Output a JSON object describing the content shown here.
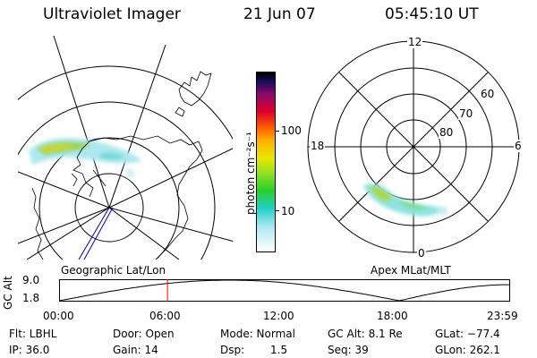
{
  "header": {
    "instrument": "Ultraviolet Imager",
    "date": "21 Jun 07",
    "time": "05:45:10 UT"
  },
  "colorbar": {
    "unit": "photon cm⁻²s⁻¹",
    "ticks": [
      "100",
      "10"
    ]
  },
  "geo_panel": {
    "label": "Geographic Lat/Lon"
  },
  "mag_panel": {
    "label": "Apex MLat/MLT",
    "mlt_labels": {
      "top": "12",
      "left": "18",
      "right": "6",
      "bottom": "0"
    },
    "lat_labels": [
      "60",
      "70",
      "80"
    ]
  },
  "altitude_plot": {
    "ylabel": "GC Alt",
    "y_ticks": [
      "9.0",
      "1.8"
    ],
    "x_ticks": [
      "00:00",
      "06:00",
      "12:00",
      "18:00",
      "23:59"
    ],
    "current_time_fraction": 0.2397
  },
  "footer": {
    "flt": "Flt: LBHL",
    "ip": "IP: 36.0",
    "door": "Door: Open",
    "gain": "Gain: 14",
    "mode": "Mode: Normal",
    "dsp_label": "Dsp:",
    "dsp_value": "1.5",
    "gc_alt": "GC Alt: 8.1 Re",
    "seq": "Seq: 39",
    "glat": "GLat: −77.4",
    "glon": "GLon: 262.1"
  },
  "colors": {
    "marker": "#ff0000",
    "track": "#0000aa"
  }
}
